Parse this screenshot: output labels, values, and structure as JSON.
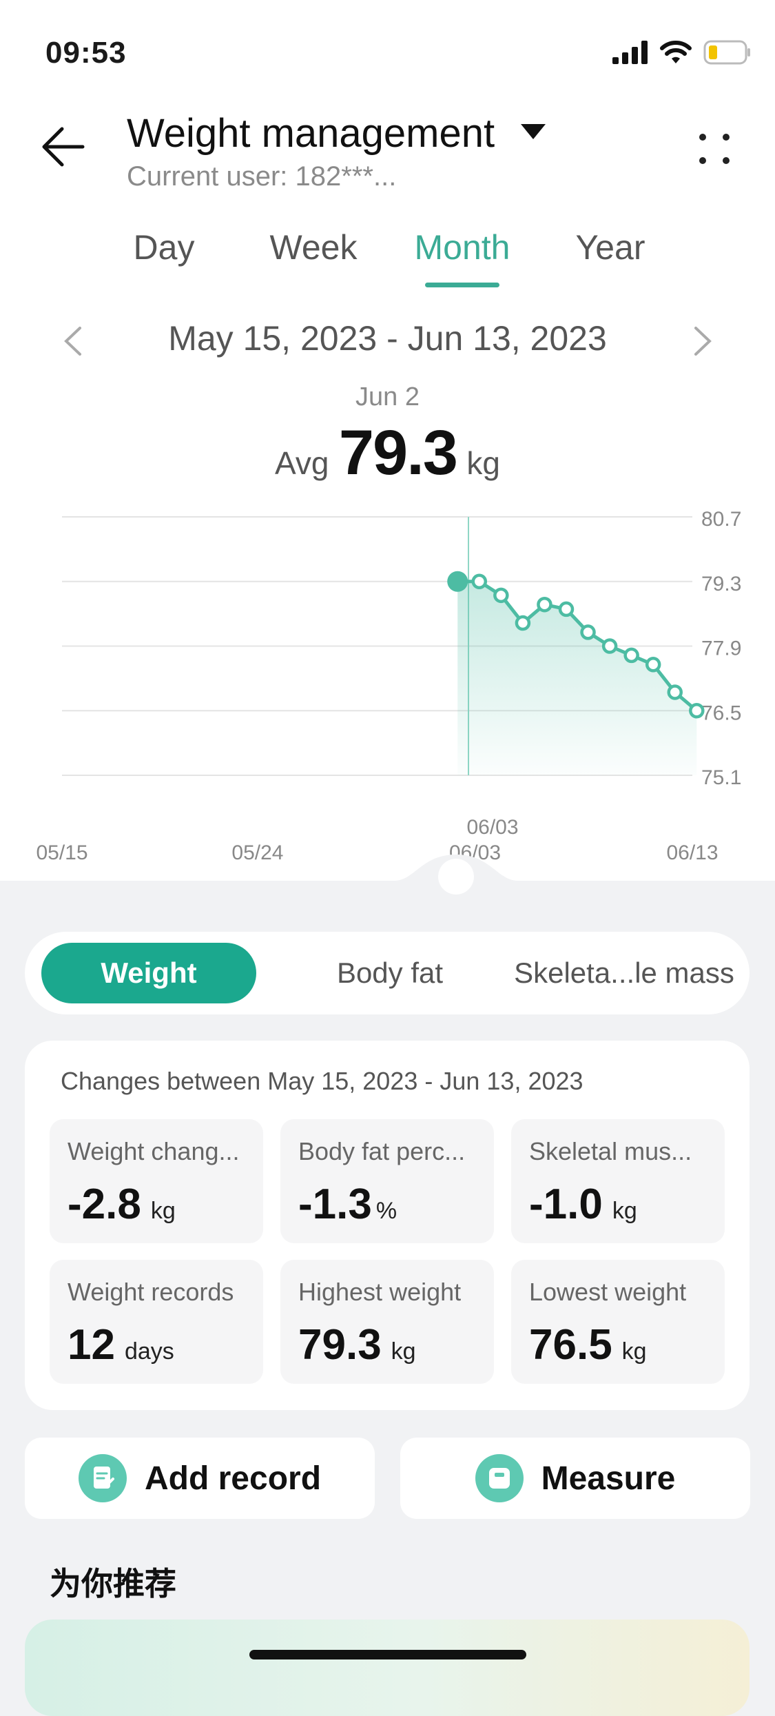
{
  "status_bar": {
    "time": "09:53"
  },
  "header": {
    "title": "Weight management",
    "subtitle": "Current user: 182***..."
  },
  "tabs": [
    {
      "label": "Day",
      "active": false
    },
    {
      "label": "Week",
      "active": false
    },
    {
      "label": "Month",
      "active": true
    },
    {
      "label": "Year",
      "active": false
    }
  ],
  "range": {
    "label": "May 15, 2023 - Jun 13, 2023"
  },
  "selection": {
    "date": "Jun 2",
    "avg_label": "Avg",
    "avg_value": "79.3",
    "unit": "kg"
  },
  "chart_data": {
    "type": "line",
    "y_ticks": [
      "80.7",
      "79.3",
      "77.9",
      "76.5",
      "75.1"
    ],
    "ylim": [
      75.1,
      80.7
    ],
    "x_tick_labels": [
      "05/15",
      "05/24",
      "06/03",
      "06/13"
    ],
    "x_ticks_day": [
      0,
      9,
      19,
      29
    ],
    "selected_label": "06/03",
    "selected_day": 18.7,
    "series": [
      {
        "x_day": [
          18.2,
          19.2,
          20.2,
          21.2,
          22.2,
          23.2,
          24.2,
          25.2,
          26.2,
          27.2,
          28.2,
          29.2
        ],
        "values": [
          79.3,
          79.3,
          79.0,
          78.4,
          78.8,
          78.7,
          78.2,
          77.9,
          77.7,
          77.5,
          76.9,
          76.5
        ]
      }
    ],
    "grid": true,
    "accent": "#4dbca3"
  },
  "metric_tabs": [
    {
      "label": "Weight",
      "active": true
    },
    {
      "label": "Body fat",
      "active": false
    },
    {
      "label": "Skeleta...le mass",
      "active": false
    }
  ],
  "changes": {
    "title": "Changes between May 15, 2023 - Jun 13, 2023",
    "stats": [
      {
        "label": "Weight chang...",
        "value": "-2.8",
        "unit": "kg"
      },
      {
        "label": "Body fat perc...",
        "value": "-1.3",
        "unit": "%"
      },
      {
        "label": "Skeletal mus...",
        "value": "-1.0",
        "unit": "kg"
      },
      {
        "label": "Weight records",
        "value": "12",
        "unit": "days"
      },
      {
        "label": "Highest weight",
        "value": "79.3",
        "unit": "kg"
      },
      {
        "label": "Lowest weight",
        "value": "76.5",
        "unit": "kg"
      }
    ]
  },
  "actions": {
    "add_record": "Add record",
    "measure": "Measure"
  },
  "recommend": {
    "title": "为你推荐"
  },
  "colors": {
    "accent": "#1ba88e",
    "tab_active": "#3bab95"
  }
}
